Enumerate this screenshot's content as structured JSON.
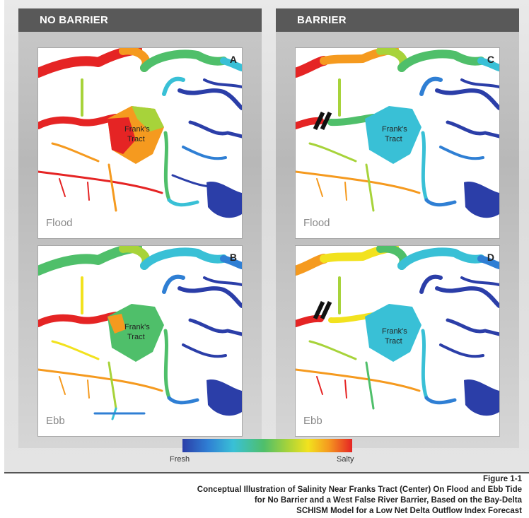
{
  "headers": {
    "left": "NO BARRIER",
    "right": "BARRIER"
  },
  "panels": [
    {
      "letter": "A",
      "tide": "Flood",
      "tract_line1": "Frank's",
      "tract_line2": "Tract"
    },
    {
      "letter": "B",
      "tide": "Ebb",
      "tract_line1": "Frank's",
      "tract_line2": "Tract"
    },
    {
      "letter": "C",
      "tide": "Flood",
      "tract_line1": "Frank's",
      "tract_line2": "Tract"
    },
    {
      "letter": "D",
      "tide": "Ebb",
      "tract_line1": "Frank's",
      "tract_line2": "Tract"
    }
  ],
  "legend": {
    "fresh_label": "Fresh",
    "salty_label": "Salty",
    "colors": {
      "fresh": "#2b3ea8",
      "mid": "#4fbf6a",
      "salty": "#e52424"
    }
  },
  "caption": {
    "figure": "Figure 1-1",
    "line1": "Conceptual Illustration of Salinity Near Franks Tract (Center) On Flood and Ebb Tide",
    "line2": "for No Barrier and a West False River Barrier, Based on the Bay-Delta",
    "line3": "SCHISM Model for a Low Net Delta Outflow Index Forecast"
  }
}
